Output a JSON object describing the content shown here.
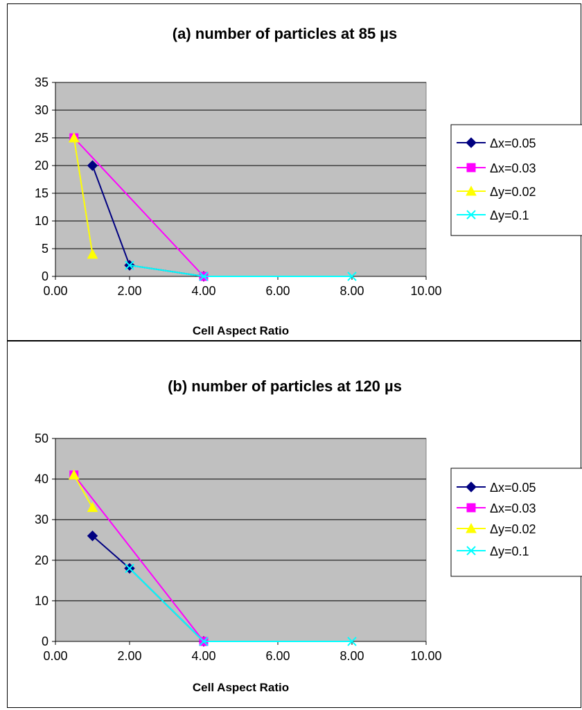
{
  "chart_data": [
    {
      "type": "line",
      "title": "(a) number of particles at 85 µs",
      "xlabel": "Cell Aspect Ratio",
      "ylabel": "",
      "xlim": [
        0,
        10
      ],
      "ylim": [
        0,
        35
      ],
      "x_ticks": [
        "0.00",
        "2.00",
        "4.00",
        "6.00",
        "8.00",
        "10.00"
      ],
      "y_ticks": [
        "0",
        "5",
        "10",
        "15",
        "20",
        "25",
        "30",
        "35"
      ],
      "grid": true,
      "legend_position": "right",
      "series": [
        {
          "name": "Δx=0.05",
          "color": "#000080",
          "marker": "diamond",
          "x": [
            1,
            2,
            4
          ],
          "y": [
            20,
            2,
            0
          ]
        },
        {
          "name": "Δx=0.03",
          "color": "#FF00FF",
          "marker": "square",
          "x": [
            0.5,
            4
          ],
          "y": [
            25,
            0
          ]
        },
        {
          "name": "Δy=0.02",
          "color": "#FFFF00",
          "marker": "triangle",
          "x": [
            0.5,
            1
          ],
          "y": [
            25,
            4
          ]
        },
        {
          "name": "Δy=0.1",
          "color": "#00FFFF",
          "marker": "x",
          "x": [
            2,
            4,
            8
          ],
          "y": [
            2,
            0,
            0
          ]
        }
      ]
    },
    {
      "type": "line",
      "title": "(b) number of particles at 120 µs",
      "xlabel": "Cell Aspect Ratio",
      "ylabel": "",
      "xlim": [
        0,
        10
      ],
      "ylim": [
        0,
        50
      ],
      "x_ticks": [
        "0.00",
        "2.00",
        "4.00",
        "6.00",
        "8.00",
        "10.00"
      ],
      "y_ticks": [
        "0",
        "10",
        "20",
        "30",
        "40",
        "50"
      ],
      "grid": true,
      "legend_position": "right",
      "series": [
        {
          "name": "Δx=0.05",
          "color": "#000080",
          "marker": "diamond",
          "x": [
            1,
            2,
            4
          ],
          "y": [
            26,
            18,
            0
          ]
        },
        {
          "name": "Δx=0.03",
          "color": "#FF00FF",
          "marker": "square",
          "x": [
            0.5,
            4
          ],
          "y": [
            41,
            0
          ]
        },
        {
          "name": "Δy=0.02",
          "color": "#FFFF00",
          "marker": "triangle",
          "x": [
            0.5,
            1
          ],
          "y": [
            41,
            33
          ]
        },
        {
          "name": "Δy=0.1",
          "color": "#00FFFF",
          "marker": "x",
          "x": [
            2,
            4,
            8
          ],
          "y": [
            18,
            0,
            0
          ]
        }
      ]
    }
  ]
}
